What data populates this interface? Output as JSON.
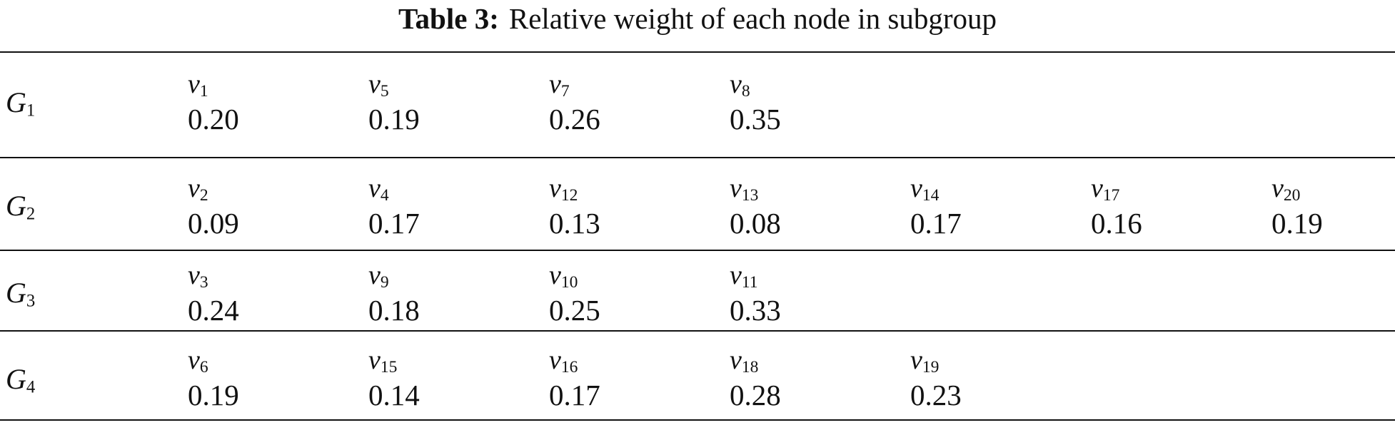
{
  "caption": {
    "label": "Table 3:",
    "text": "Relative weight of each node in subgroup"
  },
  "groups": [
    {
      "symbol": "G",
      "index": "1",
      "cells": [
        {
          "var": "v",
          "index": "1",
          "weight": "0.20"
        },
        {
          "var": "v",
          "index": "5",
          "weight": "0.19"
        },
        {
          "var": "v",
          "index": "7",
          "weight": "0.26"
        },
        {
          "var": "v",
          "index": "8",
          "weight": "0.35"
        }
      ]
    },
    {
      "symbol": "G",
      "index": "2",
      "cells": [
        {
          "var": "v",
          "index": "2",
          "weight": "0.09"
        },
        {
          "var": "v",
          "index": "4",
          "weight": "0.17"
        },
        {
          "var": "v",
          "index": "12",
          "weight": "0.13"
        },
        {
          "var": "v",
          "index": "13",
          "weight": "0.08"
        },
        {
          "var": "v",
          "index": "14",
          "weight": "0.17"
        },
        {
          "var": "v",
          "index": "17",
          "weight": "0.16"
        },
        {
          "var": "v",
          "index": "20",
          "weight": "0.19"
        }
      ]
    },
    {
      "symbol": "G",
      "index": "3",
      "cells": [
        {
          "var": "v",
          "index": "3",
          "weight": "0.24"
        },
        {
          "var": "v",
          "index": "9",
          "weight": "0.18"
        },
        {
          "var": "v",
          "index": "10",
          "weight": "0.25"
        },
        {
          "var": "v",
          "index": "11",
          "weight": "0.33"
        }
      ]
    },
    {
      "symbol": "G",
      "index": "4",
      "cells": [
        {
          "var": "v",
          "index": "6",
          "weight": "0.19"
        },
        {
          "var": "v",
          "index": "15",
          "weight": "0.14"
        },
        {
          "var": "v",
          "index": "16",
          "weight": "0.17"
        },
        {
          "var": "v",
          "index": "18",
          "weight": "0.28"
        },
        {
          "var": "v",
          "index": "19",
          "weight": "0.23"
        }
      ]
    }
  ]
}
